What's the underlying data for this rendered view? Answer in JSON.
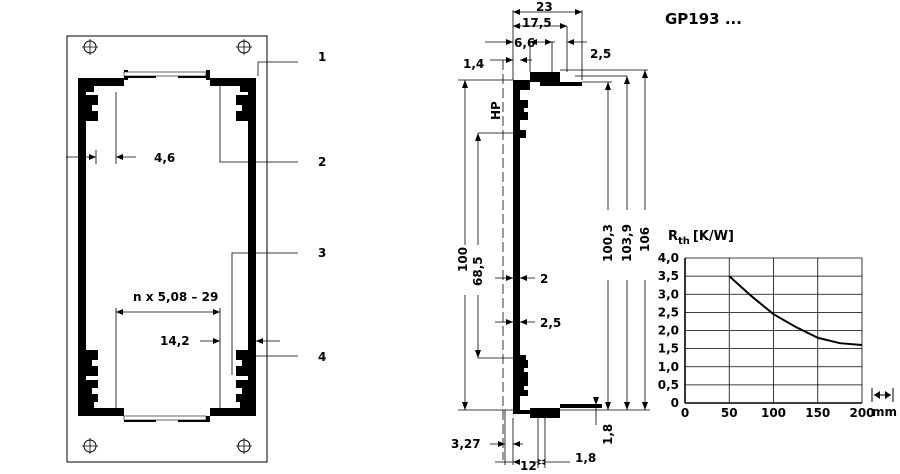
{
  "title": "GP193 ...",
  "front_view": {
    "callouts": [
      "1",
      "2",
      "3",
      "4"
    ],
    "dims": {
      "d1": "4,6",
      "d2": "n x 5,08 – 29",
      "d3": "14,2"
    }
  },
  "side_view": {
    "label_hp": "HP",
    "top_dims": [
      "23",
      "17,5",
      "6,6",
      "2,5",
      "1,4"
    ],
    "left_dims": [
      "100",
      "68,5"
    ],
    "right_dims": [
      "100,3",
      "103,9",
      "106"
    ],
    "inner_dims": [
      "2",
      "2,5"
    ],
    "bottom_dims": [
      "3,27",
      "12",
      "1,8",
      "1,8"
    ]
  },
  "chart_data": {
    "type": "line",
    "ylabel_main": "R",
    "ylabel_sub": "th",
    "ylabel_unit": "[K/W]",
    "xlabel": "mm",
    "xlim": [
      0,
      200
    ],
    "ylim": [
      0,
      4.0
    ],
    "grid": true,
    "x_ticks": [
      "0",
      "50",
      "100",
      "150",
      "200"
    ],
    "y_ticks": [
      "0",
      "0,5",
      "1,0",
      "1,5",
      "2,0",
      "2,5",
      "3,0",
      "3,5",
      "4,0"
    ],
    "x": [
      50,
      75,
      100,
      125,
      150,
      175,
      200
    ],
    "y": [
      3.5,
      2.95,
      2.45,
      2.1,
      1.8,
      1.65,
      1.6
    ]
  }
}
